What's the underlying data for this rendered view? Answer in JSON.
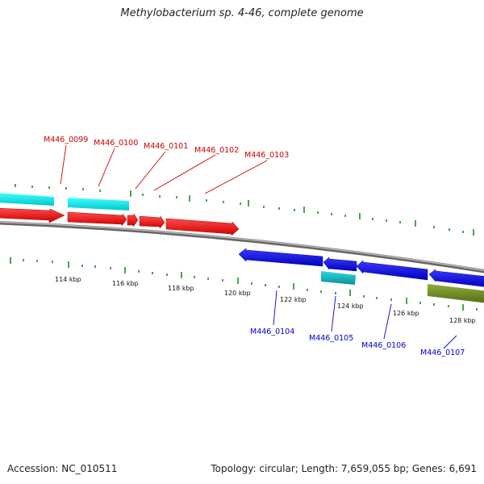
{
  "title": "Methylobacterium sp. 4-46, complete genome",
  "footer": {
    "accession": "Accession: NC_010511",
    "stats": "Topology: circular; Length: 7,659,055 bp; Genes: 6,691"
  },
  "colors": {
    "forward_cds": "#ee1111",
    "reverse_cds": "#1111ee",
    "forward_rna": "#00e5e5",
    "reverse_rna": "#10c0c8",
    "other_feature": "#6b8e23",
    "backbone": "#888888",
    "tick": "#228b22",
    "fwd_label": "#cc0000",
    "rev_label": "#0000cc"
  },
  "tick_labels": [
    "114 kbp",
    "116 kbp",
    "118 kbp",
    "120 kbp",
    "122 kbp",
    "124 kbp",
    "126 kbp",
    "128 kbp"
  ],
  "forward_gene_labels": [
    "M446_0099",
    "M446_0100",
    "M446_0101",
    "M446_0102",
    "M446_0103"
  ],
  "reverse_gene_labels": [
    "M446_0104",
    "M446_0105",
    "M446_0106",
    "M446_0107"
  ]
}
